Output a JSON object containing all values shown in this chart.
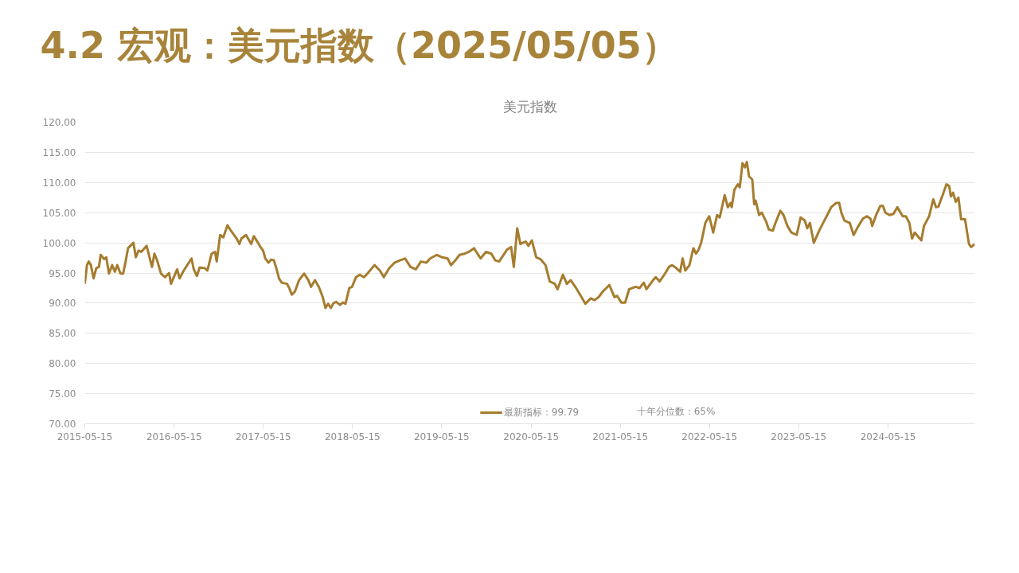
{
  "chart_data": {
    "type": "line",
    "title": "4.2 宏观：美元指数（2025/05/05）",
    "subtitle": "美元指数",
    "xlim": [
      "2015-05-15",
      "2025-05-05"
    ],
    "xticks": [
      "2015-05-15",
      "2016-05-15",
      "2017-05-15",
      "2018-05-15",
      "2019-05-15",
      "2020-05-15",
      "2021-05-15",
      "2022-05-15",
      "2023-05-15",
      "2024-05-15"
    ],
    "ylim": [
      70,
      120
    ],
    "yticks": [
      {
        "value": 70,
        "label": "70.00"
      },
      {
        "value": 75,
        "label": "75.00"
      },
      {
        "value": 80,
        "label": "80.00"
      },
      {
        "value": 85,
        "label": "85.00"
      },
      {
        "value": 90,
        "label": "90.00"
      },
      {
        "value": 95,
        "label": "95.00"
      },
      {
        "value": 100,
        "label": "100.00"
      },
      {
        "value": 105,
        "label": "105.00"
      },
      {
        "value": 110,
        "label": "110.00"
      },
      {
        "value": 115,
        "label": "115.00"
      },
      {
        "value": 120,
        "label": "120.00"
      }
    ],
    "grid": "y",
    "legend": "bottom",
    "marker": "none",
    "line_style": "solid",
    "annotations": [
      "十年分位数：65%"
    ],
    "series": [
      {
        "name": "最新指标：99.79",
        "color": "#a67c2e",
        "x": [
          "2015-05-15",
          "2015-05-24",
          "2015-05-31",
          "2015-06-09",
          "2015-06-20",
          "2015-07-01",
          "2015-07-12",
          "2015-07-19",
          "2015-08-02",
          "2015-08-11",
          "2015-08-22",
          "2015-09-04",
          "2015-09-15",
          "2015-09-25",
          "2015-10-08",
          "2015-10-19",
          "2015-10-30",
          "2015-11-08",
          "2015-11-30",
          "2015-12-10",
          "2015-12-21",
          "2016-01-01",
          "2016-01-23",
          "2016-02-14",
          "2016-02-24",
          "2016-03-06",
          "2016-03-22",
          "2016-04-08",
          "2016-04-24",
          "2016-05-02",
          "2016-05-27",
          "2016-06-06",
          "2016-06-23",
          "2016-07-25",
          "2016-08-03",
          "2016-08-16",
          "2016-08-27",
          "2016-09-17",
          "2016-09-28",
          "2016-10-15",
          "2016-10-29",
          "2016-11-05",
          "2016-11-19",
          "2016-12-02",
          "2016-12-19",
          "2017-01-04",
          "2017-01-26",
          "2017-02-06",
          "2017-02-14",
          "2017-03-05",
          "2017-03-26",
          "2017-04-06",
          "2017-04-23",
          "2017-05-03",
          "2017-05-14",
          "2017-05-23",
          "2017-06-05",
          "2017-06-16",
          "2017-06-27",
          "2017-07-07",
          "2017-07-18",
          "2017-07-29",
          "2017-08-20",
          "2017-08-31",
          "2017-09-08",
          "2017-09-21",
          "2017-10-08",
          "2017-10-29",
          "2017-11-15",
          "2017-11-26",
          "2017-12-12",
          "2017-12-28",
          "2018-01-13",
          "2018-01-24",
          "2018-02-04",
          "2018-02-15",
          "2018-02-26",
          "2018-03-09",
          "2018-03-25",
          "2018-04-05",
          "2018-04-16",
          "2018-05-02",
          "2018-05-13",
          "2018-05-29",
          "2018-06-14",
          "2018-06-30",
          "2018-07-06",
          "2018-07-17",
          "2018-08-13",
          "2018-09-04",
          "2018-09-20",
          "2018-10-12",
          "2018-11-03",
          "2018-11-25",
          "2018-12-16",
          "2019-01-07",
          "2019-01-29",
          "2019-02-19",
          "2019-03-13",
          "2019-03-29",
          "2019-04-25",
          "2019-05-17",
          "2019-06-08",
          "2019-06-22",
          "2019-07-10",
          "2019-07-27",
          "2019-08-17",
          "2019-09-03",
          "2019-09-24",
          "2019-10-21",
          "2019-11-12",
          "2019-12-04",
          "2019-12-20",
          "2020-01-05",
          "2020-02-07",
          "2020-02-23",
          "2020-03-05",
          "2020-03-19",
          "2020-04-01",
          "2020-04-10",
          "2020-04-23",
          "2020-05-04",
          "2020-05-18",
          "2020-06-05",
          "2020-06-22",
          "2020-07-13",
          "2020-07-30",
          "2020-08-20",
          "2020-08-31",
          "2020-09-22",
          "2020-10-08",
          "2020-10-24",
          "2020-11-15",
          "2020-12-07",
          "2020-12-23",
          "2021-01-14",
          "2021-01-30",
          "2021-02-15",
          "2021-03-04",
          "2021-03-31",
          "2021-04-21",
          "2021-05-02",
          "2021-05-19",
          "2021-06-04",
          "2021-06-20",
          "2021-07-17",
          "2021-08-02",
          "2021-08-19",
          "2021-08-30",
          "2021-09-26",
          "2021-10-07",
          "2021-10-23",
          "2021-11-14",
          "2021-11-30",
          "2021-12-13",
          "2021-12-24",
          "2022-01-15",
          "2022-01-25",
          "2022-02-05",
          "2022-02-22",
          "2022-03-10",
          "2022-03-21",
          "2022-04-01",
          "2022-04-11",
          "2022-04-28",
          "2022-05-14",
          "2022-05-30",
          "2022-06-15",
          "2022-06-26",
          "2022-07-16",
          "2022-07-29",
          "2022-08-09",
          "2022-08-14",
          "2022-08-25",
          "2022-09-08",
          "2022-09-16",
          "2022-09-27",
          "2022-10-07",
          "2022-10-15",
          "2022-10-24",
          "2022-11-06",
          "2022-11-14",
          "2022-11-20",
          "2022-12-04",
          "2022-12-15",
          "2023-01-02",
          "2023-01-13",
          "2023-01-29",
          "2023-02-09",
          "2023-03-01",
          "2023-03-14",
          "2023-03-30",
          "2023-04-15",
          "2023-05-07",
          "2023-05-23",
          "2023-06-09",
          "2023-06-19",
          "2023-06-30",
          "2023-07-16",
          "2023-08-07",
          "2023-08-23",
          "2023-09-09",
          "2023-09-25",
          "2023-10-15",
          "2023-10-28",
          "2023-11-05",
          "2023-11-18",
          "2023-12-10",
          "2023-12-26",
          "2024-01-12",
          "2024-02-02",
          "2024-02-18",
          "2024-03-04",
          "2024-03-11",
          "2024-03-27",
          "2024-04-13",
          "2024-04-24",
          "2024-05-04",
          "2024-05-21",
          "2024-06-06",
          "2024-06-22",
          "2024-07-14",
          "2024-07-27",
          "2024-08-10",
          "2024-08-21",
          "2024-09-01",
          "2024-09-28",
          "2024-10-09",
          "2024-10-30",
          "2024-11-16",
          "2024-11-27",
          "2024-12-07",
          "2024-12-26",
          "2025-01-09",
          "2025-01-20",
          "2025-01-27",
          "2025-02-05",
          "2025-02-16",
          "2025-02-27",
          "2025-03-10",
          "2025-03-26",
          "2025-04-11",
          "2025-04-20",
          "2025-05-05"
        ],
        "values": [
          93.2,
          96.3,
          96.9,
          96.3,
          94.1,
          95.8,
          96.0,
          98.0,
          97.3,
          97.6,
          94.9,
          96.3,
          95.2,
          96.3,
          94.9,
          94.9,
          97.1,
          99.1,
          100.0,
          97.6,
          98.7,
          98.5,
          99.5,
          96.0,
          98.2,
          97.1,
          94.9,
          94.3,
          95.0,
          93.2,
          95.6,
          94.1,
          95.4,
          97.4,
          95.6,
          94.5,
          95.9,
          95.8,
          95.4,
          98.2,
          98.5,
          96.9,
          101.3,
          100.9,
          102.9,
          101.9,
          100.7,
          99.8,
          100.7,
          101.3,
          99.8,
          101.1,
          100.0,
          99.3,
          98.7,
          97.4,
          96.7,
          97.2,
          97.1,
          95.8,
          94.1,
          93.4,
          93.2,
          92.3,
          91.4,
          91.9,
          93.8,
          94.9,
          93.8,
          92.7,
          93.8,
          92.7,
          91.0,
          89.2,
          89.9,
          89.2,
          90.0,
          90.2,
          89.7,
          90.1,
          89.9,
          92.5,
          92.7,
          94.3,
          94.7,
          94.3,
          94.5,
          95.0,
          96.3,
          95.4,
          94.3,
          95.8,
          96.7,
          97.1,
          97.4,
          96.0,
          95.6,
          96.9,
          96.7,
          97.4,
          98.0,
          97.6,
          97.4,
          96.3,
          97.1,
          98.0,
          98.2,
          98.5,
          99.1,
          97.4,
          98.5,
          98.2,
          97.1,
          96.9,
          98.9,
          99.3,
          96.0,
          102.4,
          99.8,
          100.0,
          100.2,
          99.5,
          100.4,
          97.6,
          97.3,
          96.3,
          93.6,
          93.2,
          92.3,
          94.7,
          93.2,
          93.8,
          92.5,
          91.0,
          89.9,
          90.8,
          90.5,
          91.0,
          91.9,
          93.0,
          91.0,
          91.2,
          90.1,
          90.1,
          92.3,
          92.7,
          92.5,
          93.4,
          92.3,
          93.8,
          94.3,
          93.6,
          94.9,
          96.0,
          96.3,
          96.0,
          95.2,
          97.4,
          95.4,
          96.3,
          99.1,
          98.2,
          98.9,
          100.0,
          103.3,
          104.4,
          101.7,
          104.6,
          104.2,
          107.9,
          105.9,
          106.6,
          105.9,
          108.8,
          109.7,
          109.2,
          113.2,
          112.5,
          113.4,
          111.0,
          110.5,
          106.4,
          107.0,
          104.6,
          105.0,
          103.5,
          102.2,
          102.0,
          103.3,
          105.3,
          104.6,
          102.8,
          101.7,
          101.3,
          104.2,
          103.7,
          102.4,
          103.3,
          100.0,
          102.0,
          103.3,
          104.6,
          105.9,
          106.6,
          106.6,
          105.1,
          103.7,
          103.3,
          101.3,
          102.6,
          104.0,
          104.4,
          104.0,
          102.8,
          104.6,
          106.1,
          106.1,
          105.0,
          104.6,
          104.8,
          105.9,
          104.4,
          104.4,
          103.3,
          100.7,
          101.7,
          100.4,
          102.8,
          104.4,
          107.2,
          105.9,
          106.0,
          108.1,
          109.7,
          109.4,
          107.7,
          108.3,
          106.8,
          107.5,
          103.9,
          103.9,
          99.8,
          99.3,
          99.79
        ]
      }
    ]
  }
}
